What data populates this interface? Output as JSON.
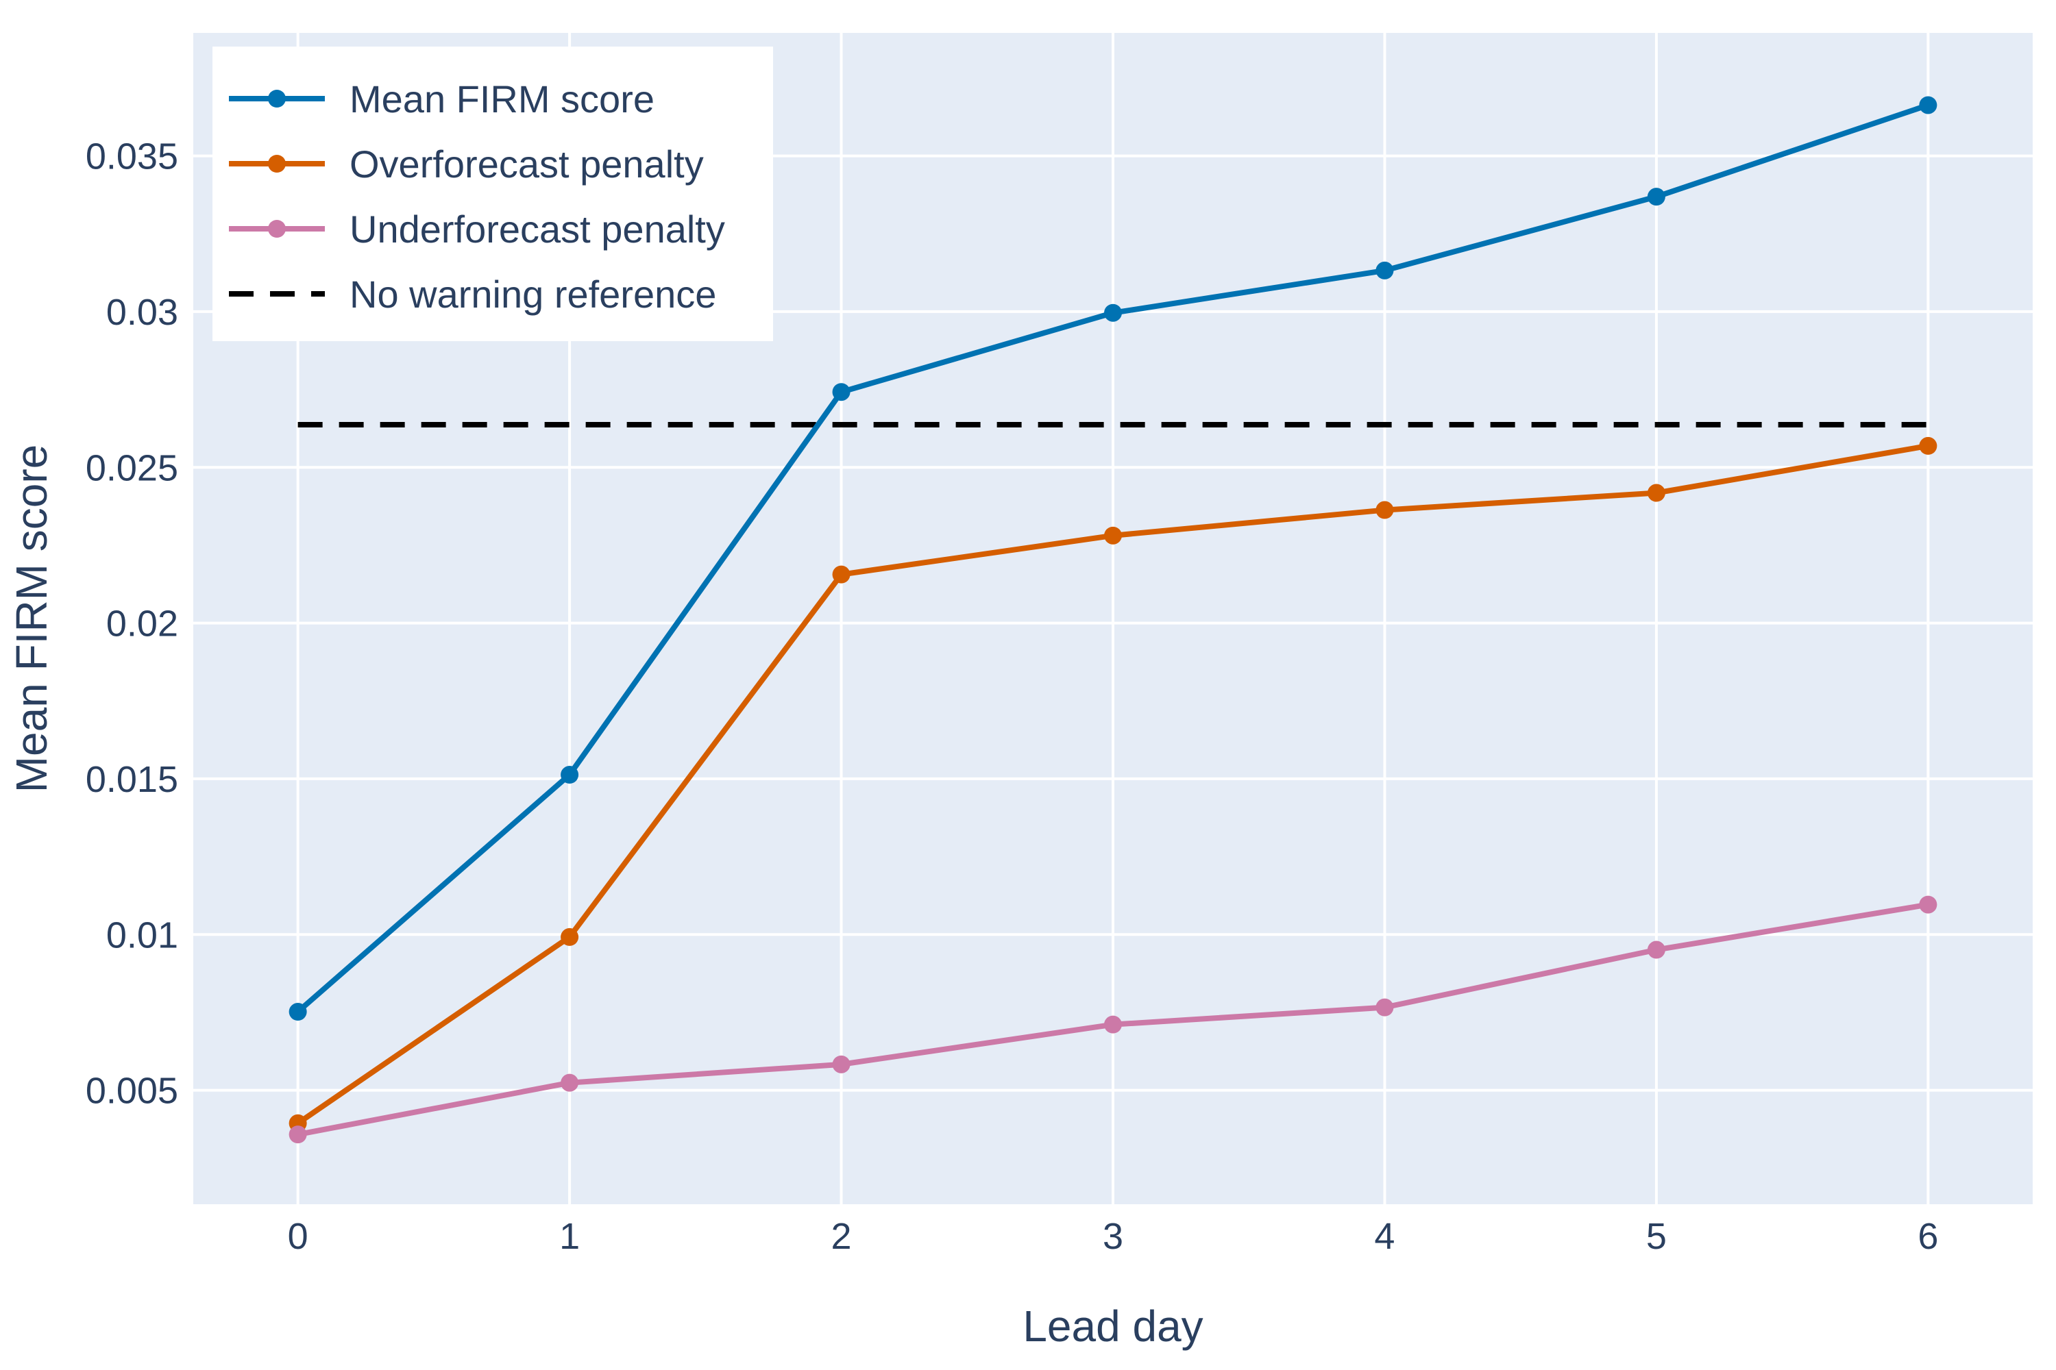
{
  "chart_data": {
    "type": "line",
    "title": "",
    "xlabel": "Lead day",
    "ylabel": "Mean FIRM score",
    "x": [
      0,
      1,
      2,
      3,
      4,
      5,
      6
    ],
    "xticks": [
      "0",
      "1",
      "2",
      "3",
      "4",
      "5",
      "6"
    ],
    "xlim": [
      -0.385,
      6.385
    ],
    "ylim": [
      0.00134,
      0.03895
    ],
    "yticks": [
      0.005,
      0.01,
      0.015,
      0.02,
      0.025,
      0.03,
      0.035
    ],
    "ytick_labels": [
      "0.005",
      "0.01",
      "0.015",
      "0.02",
      "0.025",
      "0.03",
      "0.035"
    ],
    "grid": true,
    "legend_position": "top-left",
    "series": [
      {
        "name": "Mean FIRM score",
        "color": "#0072B2",
        "style": "solid",
        "markers": true,
        "values": [
          0.00752,
          0.01513,
          0.02742,
          0.02996,
          0.03132,
          0.03369,
          0.03663
        ]
      },
      {
        "name": "Overforecast penalty",
        "color": "#D55E00",
        "style": "solid",
        "markers": true,
        "values": [
          0.00394,
          0.00992,
          0.02156,
          0.02281,
          0.02363,
          0.02418,
          0.02569
        ]
      },
      {
        "name": "Underforecast penalty",
        "color": "#CC79A7",
        "style": "solid",
        "markers": true,
        "values": [
          0.00358,
          0.00524,
          0.00583,
          0.00711,
          0.00766,
          0.00951,
          0.01096
        ]
      },
      {
        "name": "No warning reference",
        "color": "#000000",
        "style": "dashed",
        "markers": false,
        "values": [
          0.02637,
          0.02637,
          0.02637,
          0.02637,
          0.02637,
          0.02637,
          0.02637
        ]
      }
    ]
  },
  "colors": {
    "plot_background": "#E5ECF6",
    "grid": "#FFFFFF",
    "text": "#2A3F5F"
  }
}
